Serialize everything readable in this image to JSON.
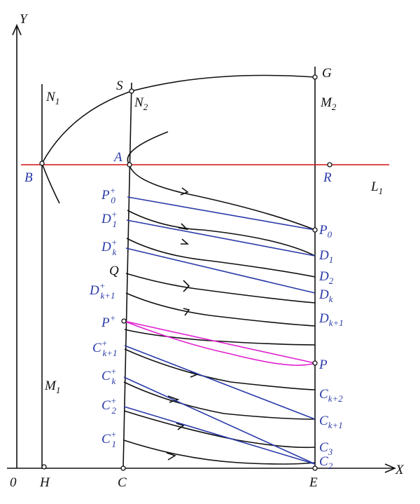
{
  "labels": [
    {
      "text": "Y"
    },
    {
      "text": "X"
    },
    {
      "text": "0"
    },
    {
      "text": "H"
    },
    {
      "text": "C"
    },
    {
      "text": "E"
    },
    {
      "text": "S"
    },
    {
      "text": "N",
      "sub": "1"
    },
    {
      "text": "N",
      "sub": "2"
    },
    {
      "text": "G"
    },
    {
      "text": "M",
      "sub": "2"
    },
    {
      "text": "A"
    },
    {
      "text": "B"
    },
    {
      "text": "R"
    },
    {
      "text": "L",
      "sub": "1"
    },
    {
      "text": "M",
      "sub": "1"
    },
    {
      "text": "P",
      "sub": "0",
      "sup": "+"
    },
    {
      "text": "D",
      "sub": "1",
      "sup": "+"
    },
    {
      "text": "D",
      "sub": "k",
      "sup": "+"
    },
    {
      "text": "Q"
    },
    {
      "text": "D",
      "sub": "k+1",
      "sup": "+"
    },
    {
      "text": "P",
      "sup": "+"
    },
    {
      "text": "C",
      "sub": "k+1",
      "sup": "+"
    },
    {
      "text": "C",
      "sub": "k",
      "sup": "+"
    },
    {
      "text": "C",
      "sub": "2",
      "sup": "+"
    },
    {
      "text": "C",
      "sub": "1",
      "sup": "+"
    },
    {
      "text": "P",
      "sub": "0"
    },
    {
      "text": "D",
      "sub": "1"
    },
    {
      "text": "D",
      "sub": "2"
    },
    {
      "text": "D",
      "sub": "k"
    },
    {
      "text": "D",
      "sub": "k+1"
    },
    {
      "text": "P"
    },
    {
      "text": "C",
      "sub": "k+2"
    },
    {
      "text": "C",
      "sub": "k+1"
    },
    {
      "text": "C",
      "sub": "3"
    },
    {
      "text": "C",
      "sub": "2"
    }
  ]
}
